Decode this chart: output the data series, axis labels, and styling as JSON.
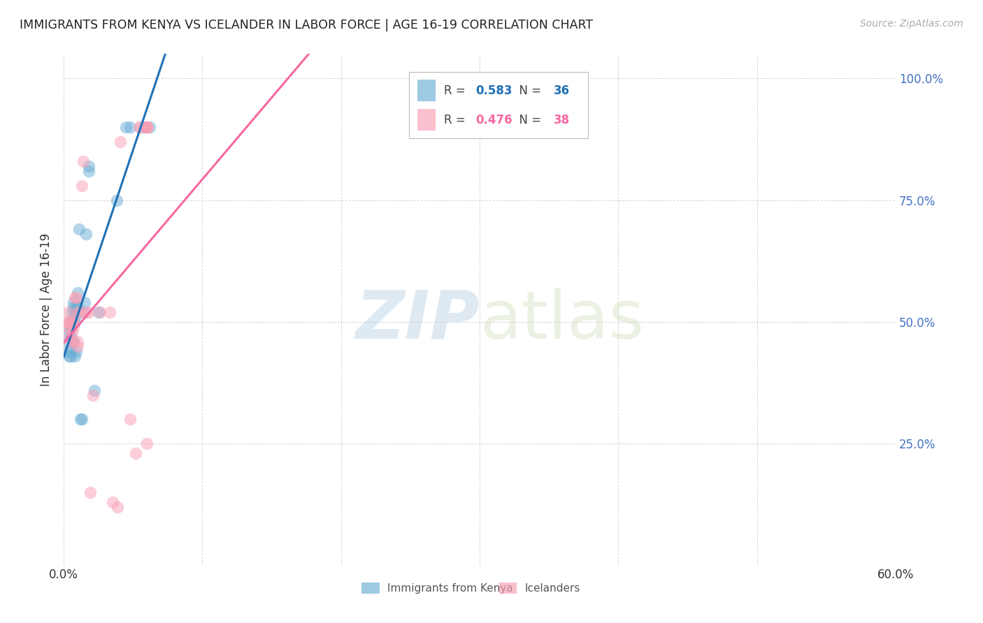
{
  "title": "IMMIGRANTS FROM KENYA VS ICELANDER IN LABOR FORCE | AGE 16-19 CORRELATION CHART",
  "source": "Source: ZipAtlas.com",
  "ylabel": "In Labor Force | Age 16-19",
  "x_min": 0.0,
  "x_max": 0.6,
  "y_min": 0.0,
  "y_max": 1.05,
  "x_tick_positions": [
    0.0,
    0.1,
    0.2,
    0.3,
    0.4,
    0.5,
    0.6
  ],
  "x_tick_labels": [
    "0.0%",
    "",
    "",
    "",
    "",
    "",
    "60.0%"
  ],
  "y_tick_positions": [
    0.0,
    0.25,
    0.5,
    0.75,
    1.0
  ],
  "y_tick_labels": [
    "",
    "25.0%",
    "50.0%",
    "75.0%",
    "100.0%"
  ],
  "kenya_R": 0.583,
  "kenya_N": 36,
  "iceland_R": 0.476,
  "iceland_N": 38,
  "kenya_color": "#6baed6",
  "iceland_color": "#fa9fb5",
  "kenya_line_color": "#2171b5",
  "iceland_line_color": "#f768a1",
  "legend_kenya": "Immigrants from Kenya",
  "legend_iceland": "Icelanders",
  "kenya_x": [
    0.003,
    0.003,
    0.004,
    0.004,
    0.005,
    0.005,
    0.005,
    0.005,
    0.005,
    0.006,
    0.006,
    0.007,
    0.007,
    0.007,
    0.008,
    0.008,
    0.008,
    0.009,
    0.009,
    0.01,
    0.01,
    0.011,
    0.012,
    0.013,
    0.014,
    0.015,
    0.016,
    0.018,
    0.018,
    0.022,
    0.025,
    0.038,
    0.045,
    0.048,
    0.058,
    0.062
  ],
  "kenya_y": [
    0.46,
    0.44,
    0.48,
    0.43,
    0.5,
    0.49,
    0.47,
    0.44,
    0.43,
    0.52,
    0.5,
    0.54,
    0.53,
    0.46,
    0.51,
    0.5,
    0.43,
    0.53,
    0.44,
    0.56,
    0.53,
    0.69,
    0.3,
    0.3,
    0.52,
    0.54,
    0.68,
    0.81,
    0.82,
    0.36,
    0.52,
    0.75,
    0.9,
    0.9,
    0.9,
    0.9
  ],
  "iceland_x": [
    0.002,
    0.003,
    0.003,
    0.004,
    0.004,
    0.005,
    0.005,
    0.006,
    0.006,
    0.007,
    0.007,
    0.007,
    0.008,
    0.009,
    0.01,
    0.01,
    0.01,
    0.012,
    0.013,
    0.014,
    0.016,
    0.018,
    0.019,
    0.021,
    0.026,
    0.033,
    0.035,
    0.039,
    0.041,
    0.048,
    0.052,
    0.055,
    0.055,
    0.06,
    0.06,
    0.06,
    0.06,
    0.06
  ],
  "iceland_y": [
    0.5,
    0.52,
    0.49,
    0.5,
    0.47,
    0.46,
    0.5,
    0.48,
    0.5,
    0.46,
    0.5,
    0.49,
    0.55,
    0.55,
    0.46,
    0.45,
    0.52,
    0.52,
    0.78,
    0.83,
    0.52,
    0.52,
    0.15,
    0.35,
    0.52,
    0.52,
    0.13,
    0.12,
    0.87,
    0.3,
    0.23,
    0.9,
    0.9,
    0.9,
    0.9,
    0.9,
    0.25,
    0.9
  ]
}
